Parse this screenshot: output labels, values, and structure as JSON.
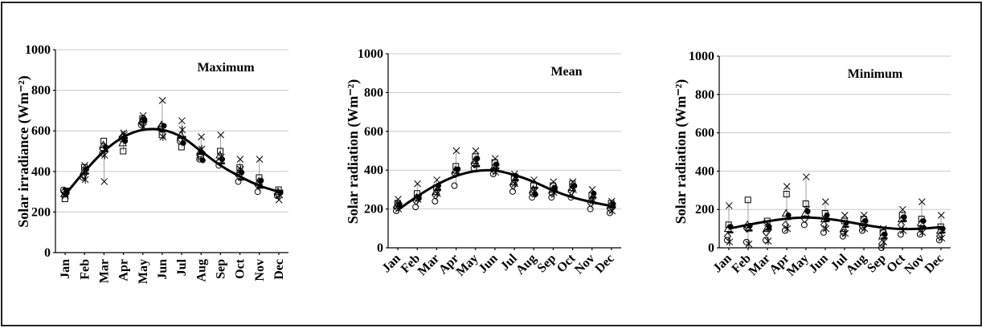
{
  "chart_data": [
    {
      "type": "scatter",
      "panel_label": "Maximum",
      "ylabel": "Solar irradiance (Wm⁻²)",
      "ylim": [
        0,
        1000
      ],
      "yticks": [
        "0",
        "200",
        "400",
        "600",
        "800",
        "1000"
      ],
      "categories": [
        "Jan",
        "Feb",
        "Mar",
        "Apr",
        "May",
        "Jun",
        "Jul",
        "Aug",
        "Sep",
        "Oct",
        "Nov",
        "Dec"
      ],
      "fit_curve": [
        285,
        400,
        500,
        570,
        605,
        605,
        570,
        500,
        430,
        375,
        330,
        300
      ],
      "points": [
        [
          310,
          300,
          290,
          265,
          280,
          300,
          315,
          295
        ],
        [
          370,
          380,
          400,
          420,
          430,
          360,
          390,
          410
        ],
        [
          490,
          510,
          530,
          550,
          350,
          480,
          500,
          520
        ],
        [
          560,
          570,
          540,
          500,
          590,
          580,
          565,
          550
        ],
        [
          630,
          640,
          650,
          660,
          675,
          620,
          645,
          655
        ],
        [
          610,
          620,
          630,
          580,
          750,
          570,
          600,
          625
        ],
        [
          550,
          560,
          580,
          520,
          650,
          605,
          570,
          540
        ],
        [
          460,
          480,
          500,
          470,
          570,
          510,
          490,
          455
        ],
        [
          430,
          450,
          480,
          500,
          580,
          470,
          440,
          460
        ],
        [
          350,
          380,
          400,
          420,
          460,
          410,
          360,
          395
        ],
        [
          300,
          330,
          350,
          370,
          460,
          340,
          320,
          355
        ],
        [
          280,
          290,
          300,
          310,
          260,
          285,
          305,
          295
        ]
      ]
    },
    {
      "type": "scatter",
      "panel_label": "Mean",
      "ylabel": "Solar radiation (Wm⁻²)",
      "ylim": [
        0,
        1000
      ],
      "yticks": [
        "0",
        "200",
        "400",
        "600",
        "800",
        "1000"
      ],
      "categories": [
        "Jan",
        "Feb",
        "Mar",
        "Apr",
        "May",
        "Jun",
        "Jul",
        "Aug",
        "Sep",
        "Oct",
        "Nov",
        "Dec"
      ],
      "fit_curve": [
        195,
        265,
        325,
        370,
        395,
        398,
        375,
        340,
        295,
        260,
        235,
        215
      ],
      "points": [
        [
          190,
          210,
          220,
          230,
          250,
          200,
          215,
          225
        ],
        [
          210,
          240,
          260,
          280,
          330,
          250,
          270,
          255
        ],
        [
          240,
          270,
          290,
          310,
          350,
          280,
          300,
          320
        ],
        [
          320,
          380,
          400,
          420,
          500,
          390,
          410,
          405
        ],
        [
          410,
          430,
          450,
          470,
          500,
          440,
          420,
          460
        ],
        [
          380,
          400,
          420,
          440,
          460,
          390,
          410,
          430
        ],
        [
          290,
          320,
          340,
          360,
          380,
          330,
          350,
          370
        ],
        [
          260,
          280,
          300,
          320,
          350,
          290,
          310,
          275
        ],
        [
          260,
          280,
          300,
          320,
          340,
          285,
          295,
          310
        ],
        [
          260,
          290,
          310,
          330,
          340,
          300,
          315,
          320
        ],
        [
          200,
          230,
          250,
          270,
          300,
          240,
          260,
          280
        ],
        [
          180,
          200,
          220,
          230,
          240,
          190,
          210,
          225
        ]
      ]
    },
    {
      "type": "scatter",
      "panel_label": "Minimum",
      "ylabel": "Solar radiation (Wm⁻²)",
      "ylim": [
        0,
        1000
      ],
      "yticks": [
        "0",
        "200",
        "400",
        "600",
        "800",
        "1000"
      ],
      "categories": [
        "Jan",
        "Feb",
        "Mar",
        "Apr",
        "May",
        "Jun",
        "Jul",
        "Aug",
        "Sep",
        "Oct",
        "Nov",
        "Dec"
      ],
      "fit_curve": [
        100,
        120,
        138,
        152,
        158,
        152,
        138,
        120,
        105,
        98,
        100,
        108
      ],
      "points": [
        [
          40,
          60,
          100,
          120,
          220,
          30,
          80,
          110
        ],
        [
          30,
          100,
          120,
          250,
          110,
          20,
          90,
          115
        ],
        [
          40,
          80,
          100,
          140,
          130,
          35,
          95,
          110
        ],
        [
          90,
          120,
          180,
          280,
          320,
          100,
          150,
          170
        ],
        [
          120,
          150,
          180,
          230,
          370,
          200,
          160,
          190
        ],
        [
          80,
          120,
          150,
          180,
          240,
          100,
          140,
          170
        ],
        [
          60,
          80,
          100,
          140,
          170,
          75,
          110,
          130
        ],
        [
          90,
          110,
          130,
          150,
          170,
          100,
          120,
          140
        ],
        [
          0,
          20,
          60,
          80,
          100,
          30,
          50,
          70
        ],
        [
          70,
          120,
          150,
          170,
          200,
          90,
          140,
          160
        ],
        [
          70,
          100,
          130,
          150,
          240,
          80,
          110,
          140
        ],
        [
          40,
          60,
          90,
          110,
          170,
          50,
          80,
          100
        ]
      ]
    }
  ]
}
